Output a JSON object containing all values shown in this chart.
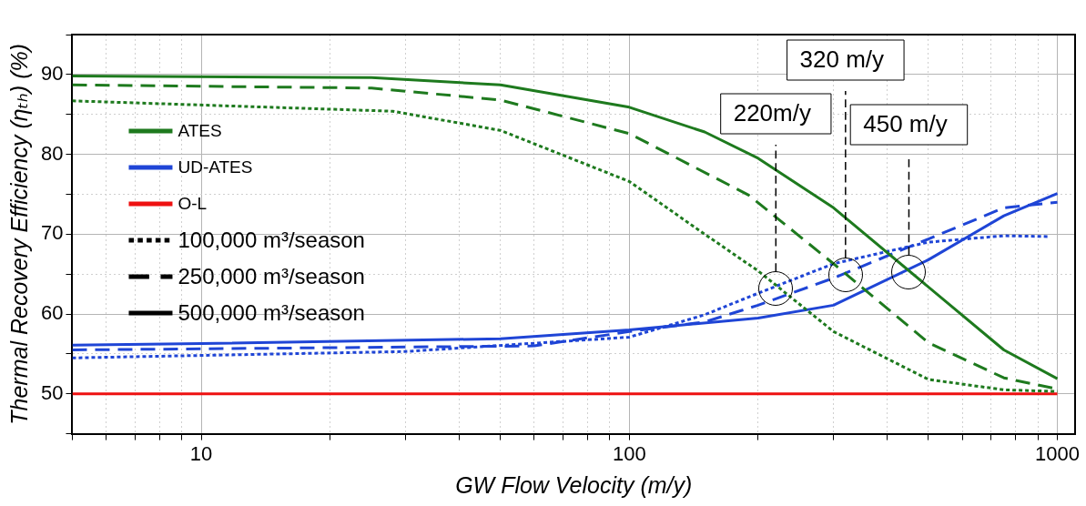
{
  "chart_data": {
    "type": "line",
    "xlabel": "GW Flow Velocity (m/y)",
    "ylabel": "Thermal Recovery Efficiency (ηₜₕ) (%)",
    "log": "x",
    "xlim": [
      5,
      1100
    ],
    "ylim": [
      45,
      95
    ],
    "xticks": [
      {
        "value": 5,
        "label": null
      },
      {
        "value": 6,
        "label": null
      },
      {
        "value": 7,
        "label": null
      },
      {
        "value": 8,
        "label": null
      },
      {
        "value": 9,
        "label": null
      },
      10,
      {
        "value": 20,
        "label": null
      },
      {
        "value": 30,
        "label": null
      },
      {
        "value": 40,
        "label": null
      },
      {
        "value": 50,
        "label": null
      },
      {
        "value": 60,
        "label": null
      },
      {
        "value": 70,
        "label": null
      },
      {
        "value": 80,
        "label": null
      },
      {
        "value": 90,
        "label": null
      },
      100,
      {
        "value": 200,
        "label": null
      },
      {
        "value": 300,
        "label": null
      },
      {
        "value": 400,
        "label": null
      },
      {
        "value": 500,
        "label": null
      },
      {
        "value": 600,
        "label": null
      },
      {
        "value": 700,
        "label": null
      },
      {
        "value": 800,
        "label": null
      },
      {
        "value": 900,
        "label": null
      },
      1000
    ],
    "yticks": [
      {
        "value": 45,
        "label": null
      },
      50,
      {
        "value": 55,
        "label": null
      },
      60,
      {
        "value": 65,
        "label": null
      },
      70,
      {
        "value": 75,
        "label": null
      },
      80,
      {
        "value": 85,
        "label": null
      },
      90,
      {
        "value": 95,
        "label": null
      }
    ],
    "grid": true,
    "legend": "top left",
    "series": [
      {
        "name": "ATES",
        "color": "#1e7a1e",
        "line_style": "solid",
        "x": [
          5,
          25,
          50,
          100,
          150,
          200,
          300,
          750,
          1000
        ],
        "values": [
          89.8,
          89.6,
          88.7,
          85.9,
          82.8,
          79.5,
          73.3,
          55.5,
          51.9
        ]
      },
      {
        "color": "#1e7a1e",
        "line_style": "dashed",
        "x": [
          5,
          25,
          50,
          100,
          190,
          300,
          500,
          750,
          1000
        ],
        "values": [
          88.7,
          88.3,
          86.8,
          82.6,
          74.9,
          66.3,
          56.4,
          52.0,
          50.6
        ]
      },
      {
        "color": "#1e7a1e",
        "line_style": "dotted",
        "x": [
          5,
          28,
          50,
          100,
          150,
          200,
          300,
          500,
          750,
          1000
        ],
        "values": [
          86.7,
          85.4,
          83.0,
          76.6,
          70.0,
          65.4,
          57.8,
          51.8,
          50.5,
          50.3
        ]
      },
      {
        "name": "UD-ATES",
        "color": "#1f45d6",
        "line_style": "solid",
        "x": [
          5,
          10,
          50,
          100,
          200,
          300,
          500,
          750,
          1000
        ],
        "values": [
          56.1,
          56.3,
          56.9,
          58.0,
          59.5,
          61.1,
          66.8,
          72.3,
          75.1
        ]
      },
      {
        "color": "#1f45d6",
        "line_style": "dashed",
        "x": [
          5,
          60,
          100,
          150,
          200,
          300,
          500,
          750,
          1000
        ],
        "values": [
          55.5,
          56.0,
          57.8,
          59.0,
          61.1,
          64.5,
          69.4,
          73.3,
          74.0
        ]
      },
      {
        "color": "#1f45d6",
        "line_style": "dotted",
        "x": [
          5,
          30,
          100,
          150,
          200,
          300,
          500,
          750,
          950
        ],
        "values": [
          54.5,
          55.3,
          57.1,
          59.9,
          62.6,
          66.3,
          69.0,
          69.8,
          69.7
        ]
      },
      {
        "name": "O-L",
        "color": "#ee1111",
        "line_style": "solid",
        "x": [
          5,
          1000
        ],
        "values": [
          50,
          50
        ]
      },
      {
        "name": "100,000 m³/season",
        "color": "#000000",
        "line_style": "dotted"
      },
      {
        "name": "250,000 m³/season",
        "color": "#000000",
        "line_style": "dashed"
      },
      {
        "name": "500,000 m³/season",
        "color": "#000000",
        "line_style": "solid"
      }
    ],
    "ref_lines": [
      {
        "axis": "x",
        "value": 220,
        "label": "220m/y",
        "color": "#000000",
        "line_style": "dashed"
      },
      {
        "axis": "x",
        "value": 320,
        "label": "320 m/y",
        "color": "#000000",
        "line_style": "dashed"
      },
      {
        "axis": "x",
        "value": 450,
        "label": "450 m/y",
        "color": "#000000",
        "line_style": "dashed"
      }
    ]
  }
}
